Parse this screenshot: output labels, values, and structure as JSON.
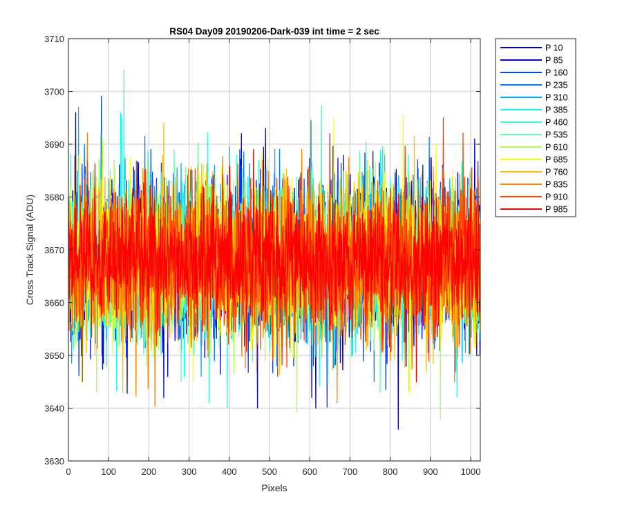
{
  "chart_data": {
    "type": "line",
    "title": "RS04 Day09 20190206-Dark-039 int time = 2 sec",
    "xlabel": "Pixels",
    "ylabel": "Cross Track Signal (ADU)",
    "xlim": [
      0,
      1024
    ],
    "ylim": [
      3630,
      3710
    ],
    "xticks": [
      0,
      100,
      200,
      300,
      400,
      500,
      600,
      700,
      800,
      900,
      1000
    ],
    "yticks": [
      3630,
      3640,
      3650,
      3660,
      3670,
      3680,
      3690,
      3700,
      3710
    ],
    "grid": true,
    "legend_position": "outside-top-right",
    "x_points": 1024,
    "center_value": 3668,
    "series": [
      {
        "name": "P 10",
        "color": "#0000b4",
        "spread": 7.2,
        "peaks": [
          [
            18,
            3696
          ],
          [
            490,
            3693
          ],
          [
            615,
            3640
          ],
          [
            820,
            3636
          ],
          [
            1010,
            3691
          ]
        ]
      },
      {
        "name": "P 85",
        "color": "#0000ff",
        "spread": 7.0,
        "peaks": [
          [
            237,
            3642
          ],
          [
            470,
            3640
          ],
          [
            605,
            3642
          ],
          [
            430,
            3692
          ]
        ]
      },
      {
        "name": "P 160",
        "color": "#0040ff",
        "spread": 7.0,
        "peaks": [
          [
            205,
            3689
          ],
          [
            560,
            3648
          ]
        ]
      },
      {
        "name": "P 235",
        "color": "#0080ff",
        "spread": 7.0,
        "peaks": [
          [
            40,
            3690
          ],
          [
            760,
            3645
          ]
        ]
      },
      {
        "name": "P 310",
        "color": "#00b0ff",
        "spread": 7.0,
        "peaks": [
          [
            25,
            3697
          ],
          [
            330,
            3646
          ]
        ]
      },
      {
        "name": "P 385",
        "color": "#00ffff",
        "spread": 7.0,
        "peaks": [
          [
            130,
            3696
          ],
          [
            138,
            3693
          ],
          [
            350,
            3644
          ]
        ]
      },
      {
        "name": "P 460",
        "color": "#30ffcf",
        "spread": 7.2,
        "peaks": [
          [
            138,
            3704
          ],
          [
            350,
            3641
          ],
          [
            130,
            3689
          ]
        ]
      },
      {
        "name": "P 535",
        "color": "#60ff9f",
        "spread": 7.0,
        "peaks": [
          [
            280,
            3645
          ],
          [
            775,
            3643
          ]
        ]
      },
      {
        "name": "P 610",
        "color": "#b0ff50",
        "spread": 7.0,
        "peaks": [
          [
            70,
            3643
          ],
          [
            925,
            3638
          ],
          [
            785,
            3689
          ]
        ]
      },
      {
        "name": "P 685",
        "color": "#ffff00",
        "spread": 7.4,
        "peaks": [
          [
            660,
            3695
          ],
          [
            310,
            3645
          ]
        ]
      },
      {
        "name": "P 760",
        "color": "#ffc000",
        "spread": 7.0,
        "peaks": [
          [
            237,
            3694
          ],
          [
            135,
            3643
          ],
          [
            890,
            3647
          ]
        ]
      },
      {
        "name": "P 835",
        "color": "#ff8000",
        "spread": 7.2,
        "peaks": [
          [
            668,
            3641
          ],
          [
            580,
            3689
          ],
          [
            960,
            3645
          ]
        ]
      },
      {
        "name": "P 910",
        "color": "#ff4000",
        "spread": 7.2,
        "peaks": [
          [
            932,
            3695
          ],
          [
            35,
            3645
          ],
          [
            520,
            3646
          ]
        ]
      },
      {
        "name": "P 985",
        "color": "#ff0000",
        "spread": 6.0,
        "peaks": [
          [
            460,
            3689
          ],
          [
            650,
            3692
          ],
          [
            865,
            3645
          ]
        ]
      }
    ]
  }
}
